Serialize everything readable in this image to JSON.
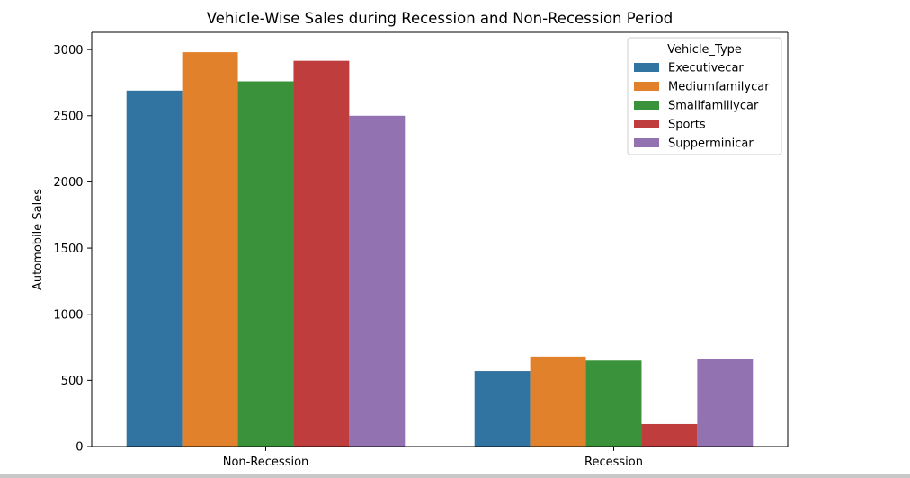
{
  "chart_data": {
    "type": "bar",
    "title": "Vehicle-Wise Sales during Recession and Non-Recession Period",
    "ylabel": "Automobile Sales",
    "categories": [
      "Non-Recession",
      "Recession"
    ],
    "ylim": [
      0,
      3130
    ],
    "yticks": [
      0,
      500,
      1000,
      1500,
      2000,
      2500,
      3000
    ],
    "grid": false,
    "legend": {
      "title": "Vehicle_Type",
      "placement": "top-right"
    },
    "series": [
      {
        "name": "Executivecar",
        "color": "#3274a1",
        "values": [
          2690,
          570
        ]
      },
      {
        "name": "Mediumfamilycar",
        "color": "#e1812c",
        "values": [
          2980,
          680
        ]
      },
      {
        "name": "Smallfamiliycar",
        "color": "#3a923a",
        "values": [
          2760,
          650
        ]
      },
      {
        "name": "Sports",
        "color": "#c03d3e",
        "values": [
          2915,
          170
        ]
      },
      {
        "name": "Supperminicar",
        "color": "#9372b2",
        "values": [
          2500,
          665
        ]
      }
    ]
  }
}
